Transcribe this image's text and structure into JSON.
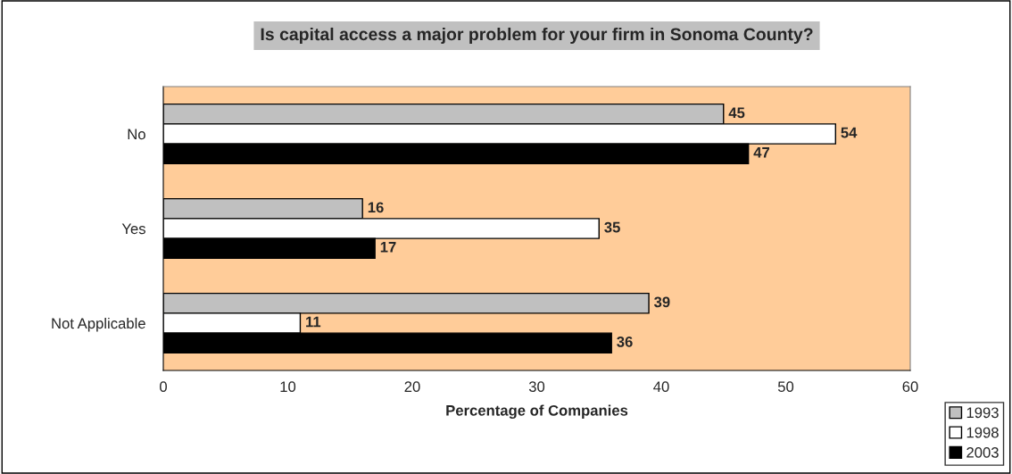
{
  "chart_data": {
    "type": "bar",
    "orientation": "horizontal",
    "title": "Is capital access a major problem for your firm in Sonoma County?",
    "xlabel": "Percentage of Companies",
    "categories": [
      "No",
      "Yes",
      "Not Applicable"
    ],
    "series": [
      {
        "name": "1993",
        "color": "#c0c0c0",
        "values": [
          45,
          16,
          39
        ]
      },
      {
        "name": "1998",
        "color": "#ffffff",
        "values": [
          54,
          35,
          11
        ]
      },
      {
        "name": "2003",
        "color": "#000000",
        "values": [
          47,
          17,
          36
        ]
      }
    ],
    "xlim": [
      0,
      60
    ],
    "xticks": [
      0,
      10,
      20,
      30,
      40,
      50,
      60
    ],
    "data_labels": true,
    "grid": false,
    "legend": "bottom right"
  }
}
